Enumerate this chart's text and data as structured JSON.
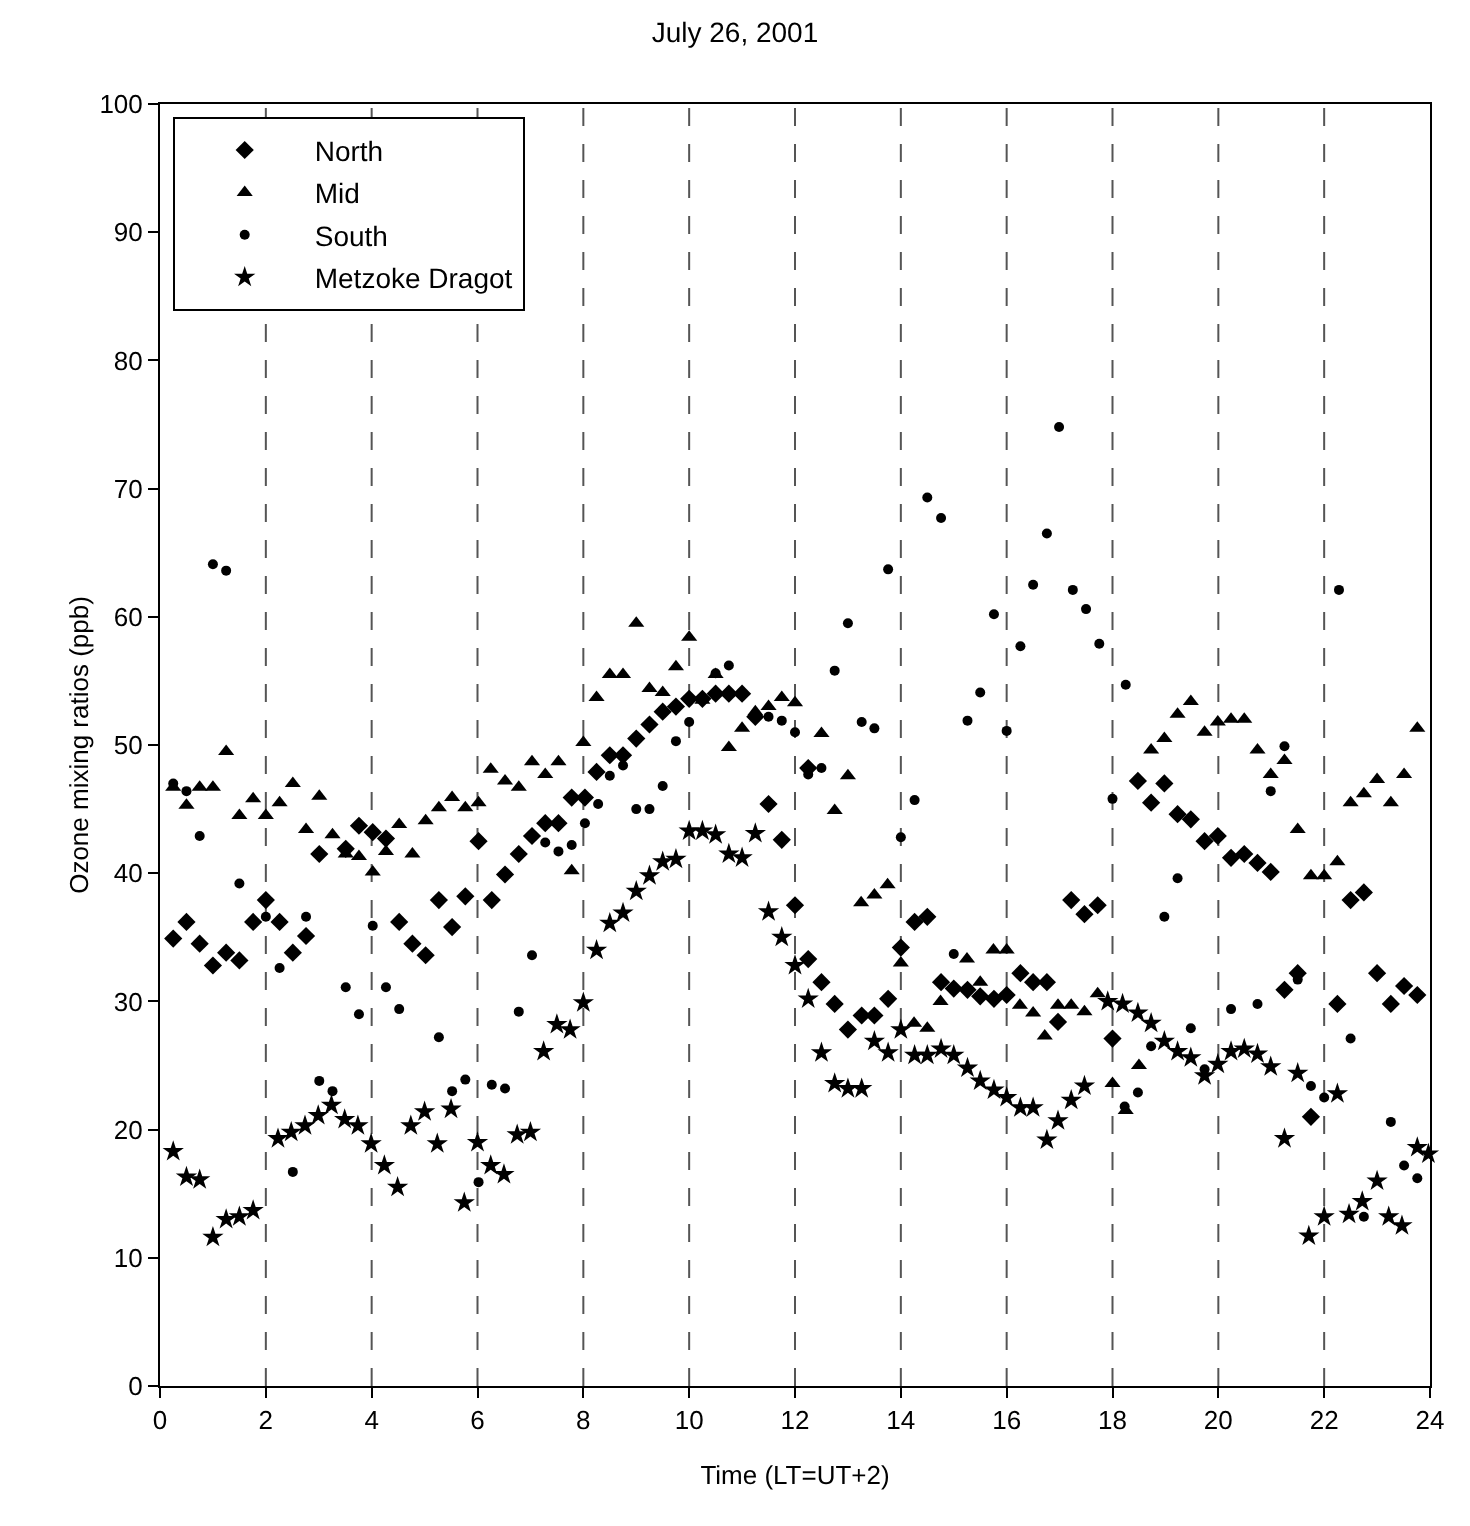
{
  "chart_data": {
    "type": "scatter",
    "title": "July 26, 2001",
    "xlabel": "Time (LT=UT+2)",
    "ylabel": "Ozone mixing ratios (ppb)",
    "xlim": [
      0,
      24
    ],
    "xticks": [
      0,
      2,
      4,
      6,
      8,
      10,
      12,
      14,
      16,
      18,
      20,
      22,
      24
    ],
    "ylim": [
      0,
      100
    ],
    "yticks": [
      0,
      10,
      20,
      30,
      40,
      50,
      60,
      70,
      80,
      90,
      100
    ],
    "grid": false,
    "legend": "top left",
    "ref_lines": [
      {
        "axis": "x",
        "value": 2,
        "line_style": "dashed"
      },
      {
        "axis": "x",
        "value": 4,
        "line_style": "dashed"
      },
      {
        "axis": "x",
        "value": 6,
        "line_style": "dashed"
      },
      {
        "axis": "x",
        "value": 8,
        "line_style": "dashed"
      },
      {
        "axis": "x",
        "value": 10,
        "line_style": "dashed"
      },
      {
        "axis": "x",
        "value": 12,
        "line_style": "dashed"
      },
      {
        "axis": "x",
        "value": 14,
        "line_style": "dashed"
      },
      {
        "axis": "x",
        "value": 16,
        "line_style": "dashed"
      },
      {
        "axis": "x",
        "value": 18,
        "line_style": "dashed"
      },
      {
        "axis": "x",
        "value": 20,
        "line_style": "dashed"
      },
      {
        "axis": "x",
        "value": 22,
        "line_style": "dashed"
      }
    ],
    "series": [
      {
        "name": "North",
        "color": "#000000",
        "marker": "diamond",
        "x": [
          0.25,
          0.5,
          0.75,
          1.0,
          1.25,
          1.5,
          1.76,
          2.0,
          2.26,
          2.51,
          2.76,
          3.01,
          3.51,
          3.76,
          4.02,
          4.27,
          4.52,
          4.77,
          5.02,
          5.27,
          5.52,
          5.77,
          6.02,
          6.27,
          6.52,
          6.78,
          7.03,
          7.28,
          7.53,
          7.78,
          8.03,
          8.25,
          8.5,
          8.75,
          9.0,
          9.25,
          9.5,
          9.75,
          10.0,
          10.25,
          10.5,
          10.75,
          11.0,
          11.25,
          11.5,
          11.75,
          12.0,
          12.25,
          12.25,
          12.5,
          12.75,
          13.0,
          13.26,
          13.5,
          13.76,
          14.0,
          14.26,
          14.5,
          14.76,
          15.0,
          15.26,
          15.5,
          15.76,
          16.0,
          16.26,
          16.5,
          16.76,
          16.97,
          17.22,
          17.47,
          17.72,
          18.0,
          18.48,
          18.73,
          18.98,
          19.23,
          19.48,
          19.74,
          19.99,
          20.24,
          20.49,
          20.74,
          20.99,
          21.25,
          21.5,
          21.75,
          22.25,
          22.5,
          22.75,
          23.0,
          23.26,
          23.51,
          23.76
        ],
        "values": [
          34.9,
          36.2,
          34.5,
          32.8,
          33.8,
          33.2,
          36.2,
          37.9,
          36.2,
          33.8,
          35.1,
          41.5,
          41.9,
          43.7,
          43.2,
          42.7,
          36.2,
          34.5,
          33.6,
          37.9,
          35.8,
          38.2,
          42.5,
          37.9,
          39.9,
          41.5,
          42.9,
          43.9,
          43.9,
          45.9,
          45.9,
          47.9,
          49.2,
          49.2,
          50.5,
          51.6,
          52.6,
          53.0,
          53.6,
          53.6,
          54.0,
          54.0,
          54.0,
          52.2,
          45.4,
          42.6,
          37.5,
          48.2,
          33.3,
          31.5,
          29.8,
          27.8,
          28.9,
          28.9,
          30.2,
          34.2,
          36.2,
          36.6,
          31.5,
          31.0,
          30.9,
          30.4,
          30.2,
          30.5,
          32.2,
          31.5,
          31.5,
          28.4,
          37.9,
          36.8,
          37.5,
          27.1,
          47.2,
          45.5,
          47.0,
          44.6,
          44.2,
          42.5,
          42.9,
          41.2,
          41.5,
          40.8,
          40.1,
          30.9,
          32.2,
          21.0,
          29.8,
          37.9,
          38.5,
          32.2,
          29.8,
          31.2,
          30.5
        ]
      },
      {
        "name": "Mid",
        "color": "#000000",
        "marker": "triangle",
        "x": [
          0.25,
          0.5,
          0.75,
          1.0,
          1.25,
          1.5,
          1.76,
          2.0,
          2.26,
          2.51,
          2.76,
          3.01,
          3.26,
          3.51,
          3.76,
          4.02,
          4.27,
          4.52,
          4.77,
          5.02,
          5.27,
          5.52,
          5.77,
          6.02,
          6.25,
          6.52,
          6.78,
          7.03,
          7.28,
          7.53,
          7.78,
          8.0,
          8.25,
          8.5,
          8.75,
          9.0,
          9.25,
          9.5,
          9.75,
          10.0,
          10.25,
          10.5,
          10.75,
          11.0,
          11.25,
          11.5,
          11.75,
          12.0,
          12.5,
          12.75,
          13.0,
          13.25,
          13.5,
          13.75,
          14.0,
          14.25,
          14.5,
          14.75,
          15.25,
          15.5,
          15.75,
          16.0,
          16.25,
          16.5,
          16.72,
          16.97,
          17.22,
          17.47,
          17.72,
          18.0,
          18.25,
          18.5,
          18.73,
          18.98,
          19.23,
          19.48,
          19.74,
          19.99,
          20.24,
          20.49,
          20.74,
          20.99,
          21.25,
          21.5,
          21.75,
          22.0,
          22.25,
          22.5,
          22.75,
          23.0,
          23.26,
          23.51,
          23.76
        ],
        "values": [
          46.7,
          45.3,
          46.7,
          46.7,
          49.5,
          44.5,
          45.8,
          44.5,
          45.5,
          47.0,
          43.4,
          46.0,
          43.0,
          41.5,
          41.3,
          40.1,
          41.7,
          43.8,
          41.5,
          44.1,
          45.1,
          45.9,
          45.1,
          45.5,
          48.1,
          47.2,
          46.7,
          48.7,
          47.7,
          48.7,
          40.2,
          50.2,
          53.7,
          55.5,
          55.5,
          59.5,
          54.4,
          54.1,
          56.1,
          58.4,
          53.5,
          55.5,
          49.8,
          51.3,
          52.6,
          53.0,
          53.7,
          53.3,
          50.9,
          44.9,
          47.6,
          37.7,
          38.3,
          39.1,
          33.0,
          28.3,
          27.9,
          30.0,
          33.3,
          31.5,
          34.0,
          34.0,
          29.7,
          29.1,
          27.3,
          29.7,
          29.7,
          29.2,
          30.6,
          23.6,
          21.5,
          25.0,
          49.6,
          50.5,
          52.4,
          53.4,
          51.0,
          51.8,
          52.0,
          52.0,
          49.6,
          47.7,
          48.8,
          43.4,
          39.8,
          39.8,
          40.9,
          45.5,
          46.2,
          47.3,
          45.5,
          47.7,
          51.3
        ]
      },
      {
        "name": "South",
        "color": "#000000",
        "marker": "circle",
        "x": [
          0.25,
          0.5,
          0.75,
          1.0,
          1.25,
          1.5,
          2.0,
          2.26,
          2.51,
          2.76,
          3.01,
          3.26,
          3.51,
          3.76,
          4.02,
          4.27,
          4.52,
          5.27,
          5.52,
          5.77,
          6.02,
          6.27,
          6.52,
          6.78,
          7.03,
          7.28,
          7.53,
          7.78,
          8.03,
          8.28,
          8.5,
          8.75,
          9.0,
          9.25,
          9.5,
          9.75,
          10.0,
          10.5,
          10.75,
          11.5,
          11.75,
          12.0,
          12.25,
          12.5,
          12.75,
          13.0,
          13.26,
          13.5,
          13.76,
          14.0,
          14.26,
          14.5,
          14.76,
          15.0,
          15.26,
          15.5,
          15.76,
          16.0,
          16.26,
          16.5,
          16.76,
          16.99,
          17.25,
          17.5,
          17.75,
          18.0,
          18.23,
          18.25,
          18.48,
          18.73,
          18.98,
          19.23,
          19.48,
          19.74,
          20.24,
          20.74,
          20.99,
          21.25,
          21.5,
          21.75,
          22.0,
          22.28,
          22.5,
          22.75,
          23.26,
          23.51,
          23.76
        ],
        "values": [
          47.0,
          46.4,
          42.9,
          64.1,
          63.6,
          39.2,
          36.6,
          32.6,
          16.7,
          36.6,
          23.8,
          23.0,
          31.1,
          29.0,
          35.9,
          31.1,
          29.4,
          27.2,
          23.0,
          23.9,
          15.9,
          23.5,
          23.2,
          29.2,
          33.6,
          42.4,
          41.7,
          42.2,
          43.9,
          45.4,
          47.6,
          48.4,
          45.0,
          45.0,
          46.8,
          50.3,
          51.8,
          55.6,
          56.2,
          52.2,
          51.9,
          51.0,
          47.7,
          48.2,
          55.8,
          59.5,
          51.8,
          51.3,
          63.7,
          42.8,
          45.7,
          69.3,
          67.7,
          33.7,
          51.9,
          54.1,
          60.2,
          51.1,
          57.7,
          62.5,
          66.5,
          74.8,
          62.1,
          60.6,
          57.9,
          45.8,
          21.8,
          54.7,
          22.9,
          26.5,
          36.6,
          39.6,
          27.9,
          24.7,
          29.4,
          29.8,
          46.4,
          49.9,
          31.7,
          23.4,
          22.5,
          62.1,
          27.1,
          13.2,
          20.6,
          17.2,
          16.2
        ]
      },
      {
        "name": "Metzoke Dragot",
        "color": "#000000",
        "marker": "star",
        "x": [
          0.25,
          0.5,
          0.75,
          1.0,
          1.25,
          1.5,
          1.76,
          2.23,
          2.48,
          2.74,
          2.99,
          3.24,
          3.49,
          3.74,
          3.99,
          4.24,
          4.49,
          4.74,
          5.0,
          5.24,
          5.5,
          5.75,
          6.0,
          6.25,
          6.5,
          6.75,
          7.0,
          7.25,
          7.5,
          7.75,
          8.0,
          8.25,
          8.5,
          8.75,
          9.0,
          9.25,
          9.5,
          9.75,
          10.0,
          10.25,
          10.5,
          10.75,
          11.0,
          11.25,
          11.5,
          11.75,
          12.0,
          12.25,
          12.5,
          12.75,
          13.0,
          13.26,
          13.5,
          13.76,
          14.0,
          14.26,
          14.5,
          14.76,
          15.0,
          15.26,
          15.5,
          15.76,
          16.0,
          16.26,
          16.5,
          16.76,
          16.97,
          17.22,
          17.47,
          17.91,
          18.19,
          18.48,
          18.73,
          18.98,
          19.23,
          19.48,
          19.74,
          19.99,
          20.24,
          20.49,
          20.74,
          20.99,
          21.25,
          21.5,
          21.71,
          22.0,
          22.25,
          22.47,
          22.72,
          23.0,
          23.22,
          23.47,
          23.76,
          23.97
        ],
        "values": [
          18.3,
          16.3,
          16.1,
          11.6,
          13.0,
          13.2,
          13.7,
          19.3,
          19.8,
          20.3,
          21.1,
          21.9,
          20.8,
          20.3,
          18.9,
          17.2,
          15.5,
          20.3,
          21.4,
          18.9,
          21.6,
          14.3,
          19.0,
          17.2,
          16.5,
          19.6,
          19.8,
          26.1,
          28.2,
          27.8,
          29.9,
          34.0,
          36.1,
          36.9,
          38.6,
          39.8,
          40.9,
          41.1,
          43.3,
          43.3,
          43.0,
          41.5,
          41.2,
          43.1,
          37.0,
          35.0,
          32.8,
          30.2,
          26.0,
          23.6,
          23.2,
          23.2,
          26.9,
          26.0,
          27.8,
          25.8,
          25.8,
          26.3,
          25.8,
          24.8,
          23.8,
          23.1,
          22.5,
          21.7,
          21.7,
          19.2,
          20.7,
          22.3,
          23.4,
          30.0,
          29.8,
          29.1,
          28.3,
          26.9,
          26.1,
          25.6,
          24.2,
          25.1,
          26.1,
          26.3,
          25.9,
          24.9,
          19.3,
          24.4,
          11.7,
          13.2,
          22.8,
          13.4,
          14.4,
          16.0,
          13.2,
          12.5,
          18.6,
          18.1
        ]
      }
    ]
  }
}
